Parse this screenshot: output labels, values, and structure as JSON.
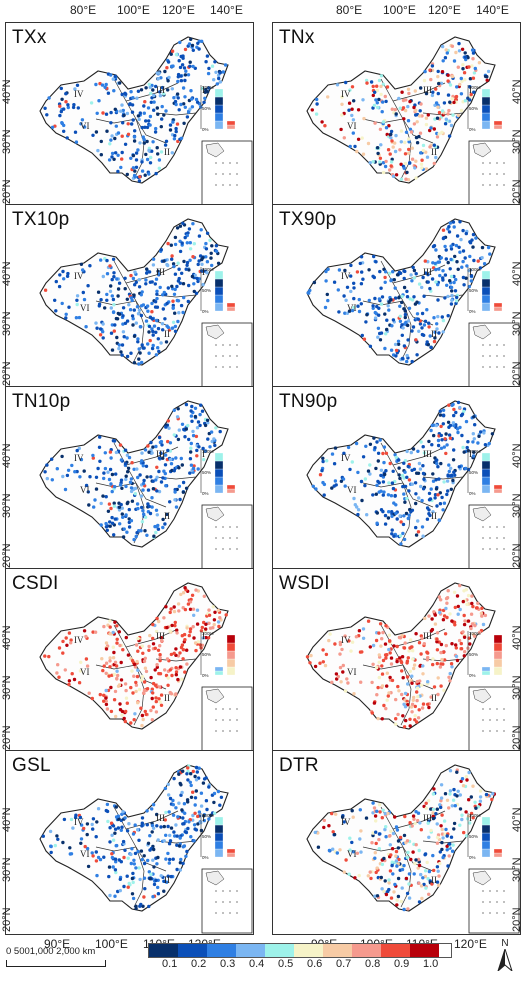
{
  "top_axis": [
    "80°E",
    "100°E",
    "120°E",
    "140°E"
  ],
  "bottom_axis": [
    "90°E",
    "100°E",
    "110°E",
    "120°E"
  ],
  "lat_labels": [
    "40°N",
    "30°N",
    "20°N"
  ],
  "region_labels": [
    "I",
    "II",
    "III",
    "IV",
    "VI"
  ],
  "inset_ticks": [
    "100%",
    "50%",
    "0%"
  ],
  "panels": [
    {
      "title": "TXx",
      "dominant": "blue"
    },
    {
      "title": "TNx",
      "dominant": "mixed"
    },
    {
      "title": "TX10p",
      "dominant": "blue"
    },
    {
      "title": "TX90p",
      "dominant": "blue"
    },
    {
      "title": "TN10p",
      "dominant": "blue"
    },
    {
      "title": "TN90p",
      "dominant": "blue"
    },
    {
      "title": "CSDI",
      "dominant": "red"
    },
    {
      "title": "WSDI",
      "dominant": "red"
    },
    {
      "title": "GSL",
      "dominant": "blue"
    },
    {
      "title": "DTR",
      "dominant": "mixed"
    }
  ],
  "legend": {
    "values": [
      "0.1",
      "0.2",
      "0.3",
      "0.4",
      "0.5",
      "0.6",
      "0.7",
      "0.8",
      "0.9",
      "1.0"
    ],
    "colors": [
      "#08306b",
      "#0b4fb8",
      "#2f7fe3",
      "#7bb6f2",
      "#9ef2ea",
      "#f6f3c8",
      "#f7cba5",
      "#f59a8e",
      "#ef4b3a",
      "#b8000a"
    ]
  },
  "scale_bar": {
    "text": "0   5001,000       2,000 km"
  },
  "north": "N"
}
